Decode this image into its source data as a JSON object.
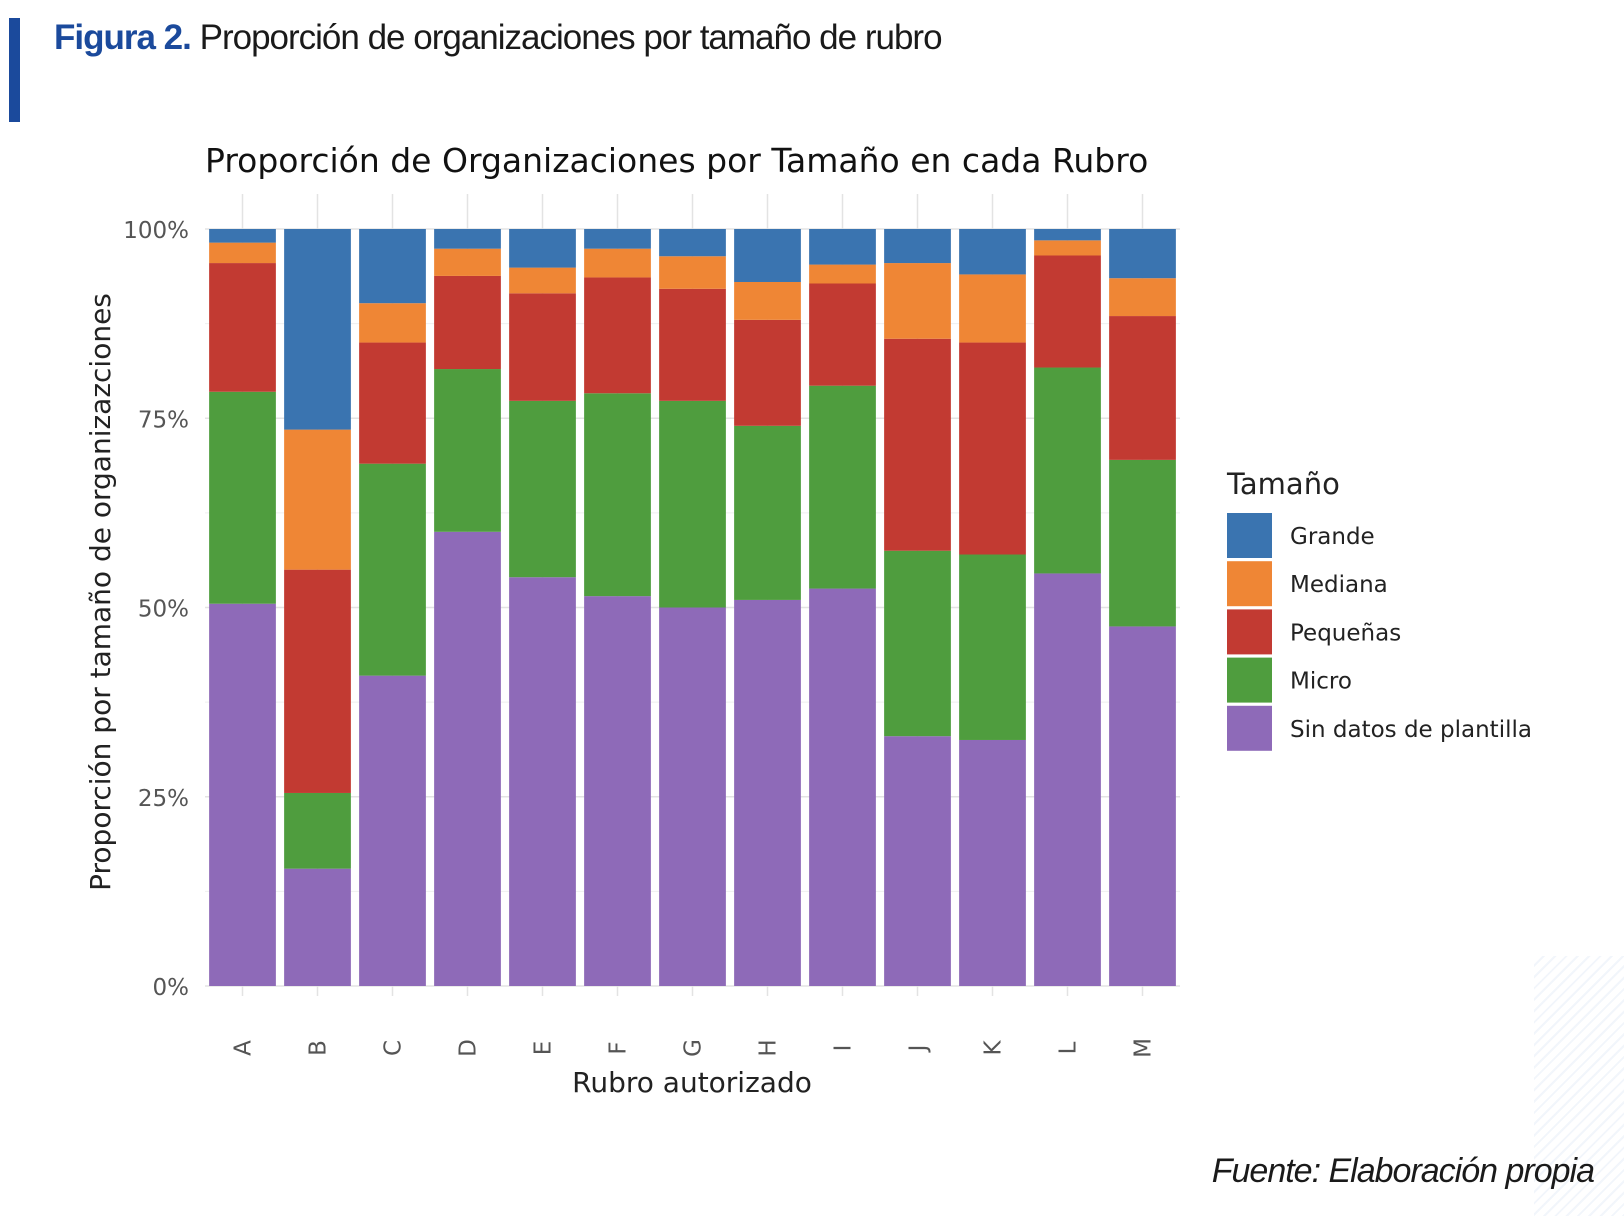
{
  "header": {
    "figure_label": "Figura 2.",
    "figure_title": "Proporción de organizaciones por tamaño de rubro"
  },
  "source": "Fuente: Elaboración propia",
  "chart_data": {
    "type": "bar",
    "stacked": true,
    "title": "Proporción de Organizaciones por Tamaño en cada Rubro",
    "xlabel": "Rubro autorizado",
    "ylabel": "Proporción por tamaño de organizazciones",
    "ylim": [
      0,
      1
    ],
    "yticks": [
      0,
      0.25,
      0.5,
      0.75,
      1
    ],
    "ytick_labels": [
      "0%",
      "25%",
      "50%",
      "75%",
      "100%"
    ],
    "grid": true,
    "legend_title": "Tamaño",
    "legend_position": "right",
    "categories": [
      "A",
      "B",
      "C",
      "D",
      "E",
      "F",
      "G",
      "H",
      "I",
      "J",
      "K",
      "L",
      "M"
    ],
    "series": [
      {
        "name": "Sin datos de plantilla",
        "color": "#8e6ab8",
        "values": [
          0.505,
          0.155,
          0.41,
          0.6,
          0.54,
          0.515,
          0.5,
          0.51,
          0.525,
          0.33,
          0.325,
          0.545,
          0.475
        ]
      },
      {
        "name": "Micro",
        "color": "#4f9d3e",
        "values": [
          0.28,
          0.1,
          0.28,
          0.215,
          0.233,
          0.268,
          0.273,
          0.23,
          0.268,
          0.245,
          0.245,
          0.272,
          0.22
        ]
      },
      {
        "name": "Pequeñas",
        "color": "#c23a32",
        "values": [
          0.17,
          0.295,
          0.16,
          0.123,
          0.142,
          0.153,
          0.148,
          0.14,
          0.135,
          0.28,
          0.28,
          0.148,
          0.19
        ]
      },
      {
        "name": "Mediana",
        "color": "#ef8635",
        "values": [
          0.027,
          0.185,
          0.052,
          0.036,
          0.034,
          0.038,
          0.043,
          0.05,
          0.025,
          0.1,
          0.09,
          0.02,
          0.05
        ]
      },
      {
        "name": "Grande",
        "color": "#3a74b0",
        "values": [
          0.018,
          0.265,
          0.098,
          0.026,
          0.051,
          0.026,
          0.036,
          0.07,
          0.047,
          0.045,
          0.06,
          0.015,
          0.065
        ]
      }
    ],
    "legend_order": [
      "Grande",
      "Mediana",
      "Pequeñas",
      "Micro",
      "Sin datos de plantilla"
    ]
  }
}
